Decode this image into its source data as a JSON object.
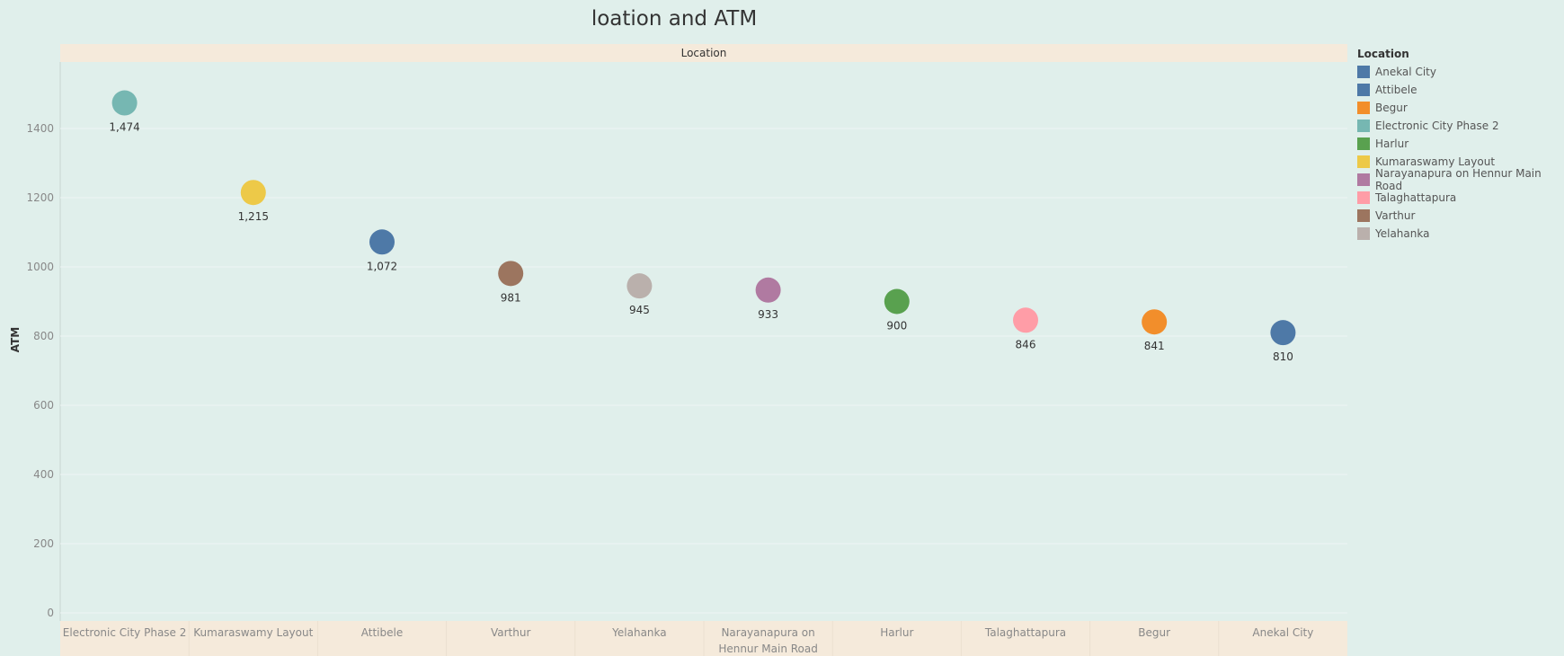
{
  "chart_data": {
    "type": "scatter",
    "title": "loation and ATM",
    "header_label": "Location",
    "ylabel": "ATM",
    "ylim": [
      0,
      1600
    ],
    "yticks": [
      0,
      200,
      400,
      600,
      800,
      1000,
      1200,
      1400
    ],
    "grid": true,
    "categories": [
      "Electronic City Phase 2",
      "Kumaraswamy Layout",
      "Attibele",
      "Varthur",
      "Yelahanka",
      "Narayanapura on Hennur Main Road",
      "Harlur",
      "Talaghattapura",
      "Begur",
      "Anekal City"
    ],
    "values": [
      1474,
      1215,
      1072,
      981,
      945,
      933,
      900,
      846,
      841,
      810
    ],
    "value_labels": [
      "1,474",
      "1,215",
      "1,072",
      "981",
      "945",
      "933",
      "900",
      "846",
      "841",
      "810"
    ],
    "colors": [
      "#76b7b2",
      "#edc948",
      "#4e79a7",
      "#9c755f",
      "#bab0ac",
      "#b07aa1",
      "#59a14f",
      "#ff9da7",
      "#f28e2b",
      "#4e79a7"
    ]
  },
  "legend": {
    "title": "Location",
    "placement": "right",
    "items": [
      {
        "label": "Anekal City",
        "color": "#4e79a7"
      },
      {
        "label": "Attibele",
        "color": "#4e79a7"
      },
      {
        "label": "Begur",
        "color": "#f28e2b"
      },
      {
        "label": "Electronic City Phase 2",
        "color": "#76b7b2"
      },
      {
        "label": "Harlur",
        "color": "#59a14f"
      },
      {
        "label": "Kumaraswamy Layout",
        "color": "#edc948"
      },
      {
        "label": "Narayanapura on Hennur Main Road",
        "color": "#b07aa1"
      },
      {
        "label": "Talaghattapura",
        "color": "#ff9da7"
      },
      {
        "label": "Varthur",
        "color": "#9c755f"
      },
      {
        "label": "Yelahanka",
        "color": "#bab0ac"
      }
    ]
  }
}
